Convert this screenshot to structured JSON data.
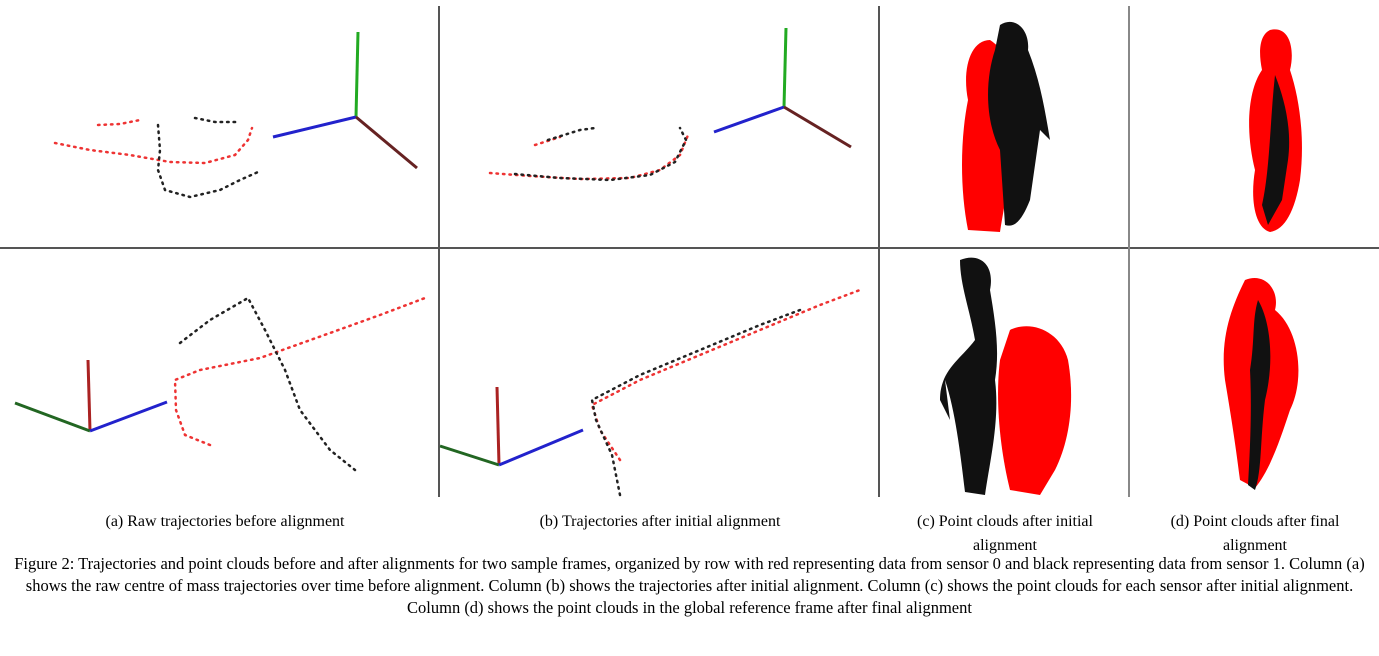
{
  "subfigures": [
    {
      "label": "(a) Raw trajectories before alignment"
    },
    {
      "label": "(b) Trajectories after initial alignment"
    },
    {
      "label": "(c) Point clouds after initial alignment"
    },
    {
      "label": "(d) Point clouds after final alignment"
    }
  ],
  "caption": "Figure 2: Trajectories and point clouds before and after alignments for two sample frames, organized by row with red representing data from sensor 0 and black representing data from sensor 1. Column (a) shows the raw centre of mass trajectories over time before alignment. Column (b) shows the trajectories after initial alignment. Column (c) shows the point clouds for each sensor after initial alignment. Column (d) shows the point clouds in the global reference frame after final alignment"
}
